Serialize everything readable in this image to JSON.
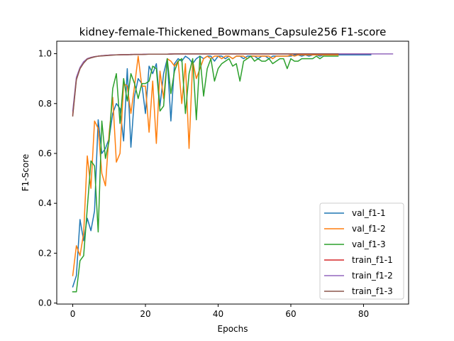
{
  "chart_data": {
    "type": "line",
    "title": "kidney-female-Thickened_Bowmans_Capsule256 F1-score",
    "xlabel": "Epochs",
    "ylabel": "F1-Score",
    "xlim": [
      -4.4,
      92.4
    ],
    "ylim": [
      -0.004,
      1.05
    ],
    "xticks": [
      0,
      20,
      40,
      60,
      80
    ],
    "yticks": [
      0.0,
      0.2,
      0.4,
      0.6,
      0.8,
      1.0
    ],
    "xtick_labels": [
      "0",
      "20",
      "40",
      "60",
      "80"
    ],
    "ytick_labels": [
      "0.0",
      "0.2",
      "0.4",
      "0.6",
      "0.8",
      "1.0"
    ],
    "grid": false,
    "legend_position": "lower-right",
    "series": [
      {
        "name": "val_f1-1",
        "color": "#1f77b4",
        "x": [
          0,
          1,
          2,
          3,
          4,
          5,
          6,
          7,
          8,
          9,
          10,
          11,
          12,
          13,
          14,
          15,
          16,
          17,
          18,
          19,
          20,
          21,
          22,
          23,
          24,
          25,
          26,
          27,
          28,
          29,
          30,
          31,
          32,
          33,
          34,
          35,
          36,
          37,
          38,
          39,
          40,
          41,
          42,
          43,
          44,
          45,
          46,
          47,
          48,
          49,
          50,
          51,
          52,
          53,
          54,
          55,
          56,
          57,
          58,
          59,
          60,
          61,
          62,
          63,
          64,
          65,
          66,
          67,
          68,
          69,
          70,
          71,
          72,
          73,
          74,
          75,
          76,
          77,
          78,
          79,
          80,
          81,
          82
        ],
        "y": [
          0.065,
          0.11,
          0.335,
          0.25,
          0.34,
          0.29,
          0.37,
          0.735,
          0.6,
          0.62,
          0.66,
          0.76,
          0.8,
          0.78,
          0.65,
          0.94,
          0.625,
          0.83,
          0.9,
          0.88,
          0.76,
          0.95,
          0.92,
          0.96,
          0.79,
          0.92,
          0.98,
          0.73,
          0.96,
          0.98,
          0.97,
          0.99,
          0.98,
          0.96,
          0.98,
          0.99,
          0.98,
          0.99,
          0.99,
          0.97,
          0.99,
          0.99,
          0.98,
          0.99,
          0.98,
          0.99,
          0.99,
          0.98,
          0.99,
          0.99,
          0.99,
          0.98,
          0.99,
          0.99,
          0.98,
          0.99,
          0.99,
          0.99,
          0.99,
          0.99,
          0.99,
          0.995,
          0.995,
          0.99,
          0.995,
          0.99,
          0.995,
          0.995,
          0.99,
          0.995,
          0.995,
          0.995,
          0.995,
          0.995,
          0.995,
          0.995,
          0.995,
          0.995,
          0.995,
          0.995,
          0.995,
          0.995,
          0.995
        ]
      },
      {
        "name": "val_f1-2",
        "color": "#ff7f0e",
        "x": [
          0,
          1,
          2,
          3,
          4,
          5,
          6,
          7,
          8,
          9,
          10,
          11,
          12,
          13,
          14,
          15,
          16,
          17,
          18,
          19,
          20,
          21,
          22,
          23,
          24,
          25,
          26,
          27,
          28,
          29,
          30,
          31,
          32,
          33,
          34,
          35,
          36,
          37,
          38,
          39,
          40,
          41,
          42,
          43,
          44,
          45,
          46,
          47,
          48,
          49,
          50,
          51,
          52,
          53,
          54,
          55,
          56,
          57,
          58,
          59,
          60,
          61,
          62,
          63,
          64,
          65,
          66,
          67,
          68,
          69,
          70,
          71,
          72,
          73
        ],
        "y": [
          0.11,
          0.23,
          0.19,
          0.28,
          0.59,
          0.46,
          0.73,
          0.7,
          0.52,
          0.47,
          0.68,
          0.825,
          0.565,
          0.6,
          0.88,
          0.87,
          0.76,
          0.87,
          0.99,
          0.87,
          0.87,
          0.685,
          0.89,
          0.64,
          0.93,
          0.82,
          0.98,
          0.97,
          0.95,
          0.97,
          0.8,
          0.96,
          0.62,
          0.97,
          0.9,
          0.94,
          0.98,
          0.99,
          0.98,
          0.99,
          0.99,
          0.98,
          0.99,
          0.99,
          0.98,
          0.99,
          0.99,
          0.99,
          0.98,
          0.99,
          0.99,
          0.99,
          0.99,
          0.99,
          0.99,
          0.98,
          0.99,
          0.99,
          0.99,
          0.99,
          0.995,
          0.99,
          0.995,
          0.995,
          0.995,
          0.995,
          0.995,
          0.995,
          0.995,
          0.995,
          0.995,
          0.995,
          0.995,
          0.995
        ]
      },
      {
        "name": "val_f1-3",
        "color": "#2ca02c",
        "x": [
          0,
          1,
          2,
          3,
          4,
          5,
          6,
          7,
          8,
          9,
          10,
          11,
          12,
          13,
          14,
          15,
          16,
          17,
          18,
          19,
          20,
          21,
          22,
          23,
          24,
          25,
          26,
          27,
          28,
          29,
          30,
          31,
          32,
          33,
          34,
          35,
          36,
          37,
          38,
          39,
          40,
          41,
          42,
          43,
          44,
          45,
          46,
          47,
          48,
          49,
          50,
          51,
          52,
          53,
          54,
          55,
          56,
          57,
          58,
          59,
          60,
          61,
          62,
          63,
          64,
          65,
          66,
          67,
          68,
          69,
          70,
          71,
          72,
          73
        ],
        "y": [
          0.045,
          0.045,
          0.17,
          0.19,
          0.38,
          0.57,
          0.55,
          0.285,
          0.73,
          0.58,
          0.65,
          0.86,
          0.92,
          0.72,
          0.9,
          0.81,
          0.92,
          0.88,
          0.82,
          0.88,
          0.88,
          0.89,
          0.95,
          0.94,
          0.77,
          0.79,
          0.98,
          0.84,
          0.93,
          0.97,
          0.98,
          0.76,
          0.92,
          0.98,
          0.735,
          0.99,
          0.83,
          0.94,
          0.98,
          0.89,
          0.94,
          0.96,
          0.97,
          0.98,
          0.95,
          0.96,
          0.89,
          0.97,
          0.98,
          0.99,
          0.97,
          0.98,
          0.97,
          0.97,
          0.98,
          0.96,
          0.97,
          0.98,
          0.98,
          0.94,
          0.98,
          0.97,
          0.97,
          0.98,
          0.98,
          0.98,
          0.98,
          0.99,
          0.98,
          0.99,
          0.99,
          0.99,
          0.99,
          0.99
        ]
      },
      {
        "name": "train_f1-1",
        "color": "#d62728",
        "x": [
          0,
          1,
          2,
          3,
          4,
          5,
          6,
          7,
          8,
          9,
          10,
          11,
          12,
          13,
          14,
          15,
          16,
          17,
          18,
          19,
          20,
          21,
          22,
          23,
          24,
          25,
          26,
          27,
          28,
          29,
          30,
          31,
          32,
          33,
          34,
          35,
          36,
          37,
          38,
          39,
          40,
          41,
          42,
          43,
          44,
          45,
          46,
          47,
          48,
          49,
          50,
          51,
          52,
          53,
          54,
          55,
          56,
          57,
          58,
          59,
          60,
          61,
          62,
          63,
          64,
          65,
          66,
          67,
          68,
          69,
          70,
          71,
          72,
          73,
          74,
          75,
          76,
          77,
          78,
          79,
          80,
          81,
          82
        ],
        "y": [
          0.755,
          0.9,
          0.94,
          0.965,
          0.98,
          0.985,
          0.988,
          0.99,
          0.992,
          0.993,
          0.994,
          0.995,
          0.995,
          0.996,
          0.996,
          0.996,
          0.997,
          0.997,
          0.997,
          0.997,
          0.998,
          0.998,
          0.998,
          0.998,
          0.998,
          0.998,
          0.998,
          0.999,
          0.999,
          0.999,
          0.999,
          0.999,
          0.999,
          0.999,
          0.999,
          0.999,
          0.999,
          0.999,
          0.999,
          0.999,
          0.999,
          0.999,
          0.999,
          0.999,
          0.999,
          0.999,
          0.999,
          0.999,
          0.999,
          0.999,
          0.999,
          0.999,
          0.999,
          0.999,
          0.999,
          0.999,
          0.999,
          0.999,
          0.999,
          0.999,
          0.999,
          0.999,
          0.999,
          0.999,
          0.999,
          0.999,
          0.999,
          0.999,
          0.999,
          0.999,
          0.999,
          0.999,
          0.999,
          0.999,
          0.999,
          0.999,
          0.999,
          0.999,
          0.999,
          0.999,
          0.999,
          0.999,
          0.999
        ]
      },
      {
        "name": "train_f1-2",
        "color": "#9467bd",
        "x": [
          0,
          1,
          2,
          3,
          4,
          5,
          6,
          7,
          8,
          9,
          10,
          11,
          12,
          13,
          14,
          15,
          16,
          17,
          18,
          19,
          20,
          21,
          22,
          23,
          24,
          25,
          26,
          27,
          28,
          29,
          30,
          31,
          32,
          33,
          34,
          35,
          36,
          37,
          38,
          39,
          40,
          41,
          42,
          43,
          44,
          45,
          46,
          47,
          48,
          49,
          50,
          51,
          52,
          53,
          54,
          55,
          56,
          57,
          58,
          59,
          60,
          61,
          62,
          63,
          64,
          65,
          66,
          67,
          68,
          69,
          70,
          71,
          72,
          73,
          74,
          75,
          76,
          77,
          78,
          79,
          80,
          81,
          82,
          83,
          84,
          85,
          86,
          87,
          88
        ],
        "y": [
          0.77,
          0.905,
          0.945,
          0.968,
          0.98,
          0.985,
          0.988,
          0.99,
          0.992,
          0.993,
          0.994,
          0.995,
          0.995,
          0.996,
          0.996,
          0.996,
          0.997,
          0.997,
          0.997,
          0.997,
          0.998,
          0.998,
          0.998,
          0.998,
          0.998,
          0.998,
          0.998,
          0.999,
          0.999,
          0.999,
          0.999,
          0.999,
          0.999,
          0.999,
          0.999,
          0.999,
          0.999,
          0.999,
          0.999,
          0.999,
          0.999,
          0.999,
          0.999,
          0.999,
          0.999,
          0.999,
          0.999,
          0.999,
          0.999,
          0.999,
          0.999,
          0.999,
          0.999,
          0.999,
          0.999,
          0.999,
          0.999,
          0.999,
          0.999,
          0.999,
          0.999,
          0.999,
          0.999,
          0.999,
          0.999,
          0.999,
          0.999,
          0.999,
          0.999,
          0.999,
          0.999,
          0.999,
          0.999,
          0.999,
          0.999,
          0.999,
          0.999,
          0.999,
          0.999,
          0.999,
          0.999,
          0.999,
          0.999,
          0.999,
          0.999,
          0.999,
          0.999,
          0.999,
          0.999
        ]
      },
      {
        "name": "train_f1-3",
        "color": "#8c564b",
        "x": [
          0,
          1,
          2,
          3,
          4,
          5,
          6,
          7,
          8,
          9,
          10,
          11,
          12,
          13,
          14,
          15,
          16,
          17,
          18,
          19,
          20,
          21,
          22,
          23,
          24,
          25,
          26,
          27,
          28,
          29,
          30,
          31,
          32,
          33,
          34,
          35,
          36,
          37,
          38,
          39,
          40,
          41,
          42,
          43,
          44,
          45,
          46,
          47,
          48,
          49,
          50,
          51,
          52,
          53,
          54,
          55,
          56,
          57,
          58,
          59,
          60,
          61,
          62,
          63,
          64,
          65,
          66,
          67,
          68,
          69,
          70,
          71,
          72,
          73
        ],
        "y": [
          0.75,
          0.895,
          0.94,
          0.962,
          0.978,
          0.983,
          0.987,
          0.99,
          0.991,
          0.992,
          0.993,
          0.994,
          0.995,
          0.995,
          0.996,
          0.996,
          0.996,
          0.997,
          0.997,
          0.997,
          0.997,
          0.998,
          0.998,
          0.998,
          0.998,
          0.998,
          0.998,
          0.998,
          0.999,
          0.999,
          0.999,
          0.999,
          0.999,
          0.999,
          0.999,
          0.999,
          0.999,
          0.999,
          0.999,
          0.999,
          0.999,
          0.999,
          0.999,
          0.999,
          0.999,
          0.999,
          0.999,
          0.999,
          0.999,
          0.999,
          0.999,
          0.999,
          0.999,
          0.999,
          0.999,
          0.999,
          0.999,
          0.999,
          0.999,
          0.999,
          0.999,
          0.999,
          0.999,
          0.999,
          0.999,
          0.999,
          0.999,
          0.999,
          0.999,
          0.999,
          0.999,
          0.999,
          0.999,
          0.999
        ]
      }
    ]
  }
}
